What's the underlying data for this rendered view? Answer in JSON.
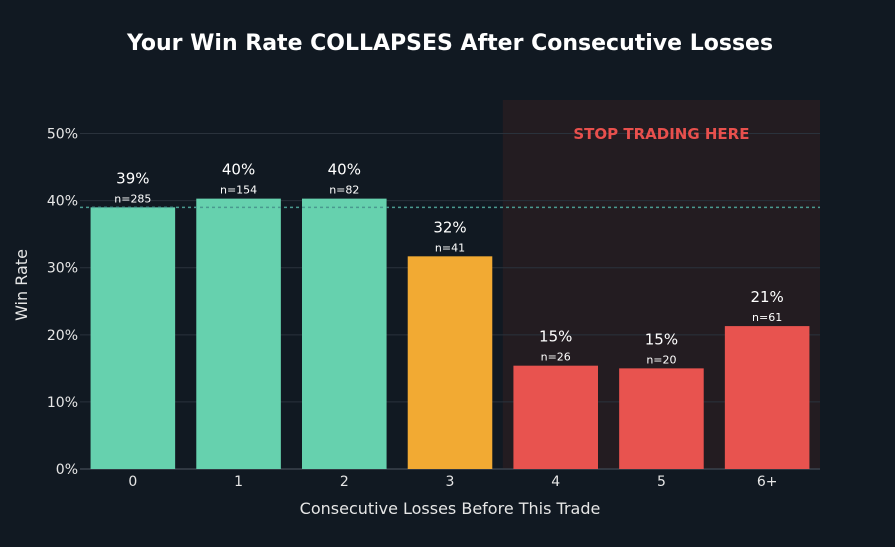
{
  "chart_data": {
    "type": "bar",
    "title": "Your Win Rate COLLAPSES After Consecutive Losses",
    "xlabel": "Consecutive Losses Before This Trade",
    "ylabel": "Win Rate",
    "categories": [
      "0",
      "1",
      "2",
      "3",
      "4",
      "5",
      "6+"
    ],
    "values": [
      39,
      40.3,
      40.3,
      31.7,
      15.4,
      15,
      21.3
    ],
    "value_labels": [
      "39%",
      "40%",
      "40%",
      "32%",
      "15%",
      "15%",
      "21%"
    ],
    "counts": [
      "n=285",
      "n=154",
      "n=82",
      "n=41",
      "n=26",
      "n=20",
      "n=61"
    ],
    "bar_colors": [
      "#66d1ae",
      "#66d1ae",
      "#66d1ae",
      "#f2aa33",
      "#e8534f",
      "#e8534f",
      "#e8534f"
    ],
    "ylim": [
      0,
      55
    ],
    "yticks": [
      0,
      10,
      20,
      30,
      40,
      50
    ],
    "ytick_labels": [
      "0%",
      "10%",
      "20%",
      "30%",
      "40%",
      "50%"
    ],
    "baseline_value": 39,
    "baseline_color": "#4a9a90",
    "highlight_region": {
      "from_category": "4",
      "label": "STOP TRADING HERE",
      "label_color": "#e8504d",
      "fill_color": "#231c21"
    },
    "grid": true,
    "background_color": "#111922"
  }
}
